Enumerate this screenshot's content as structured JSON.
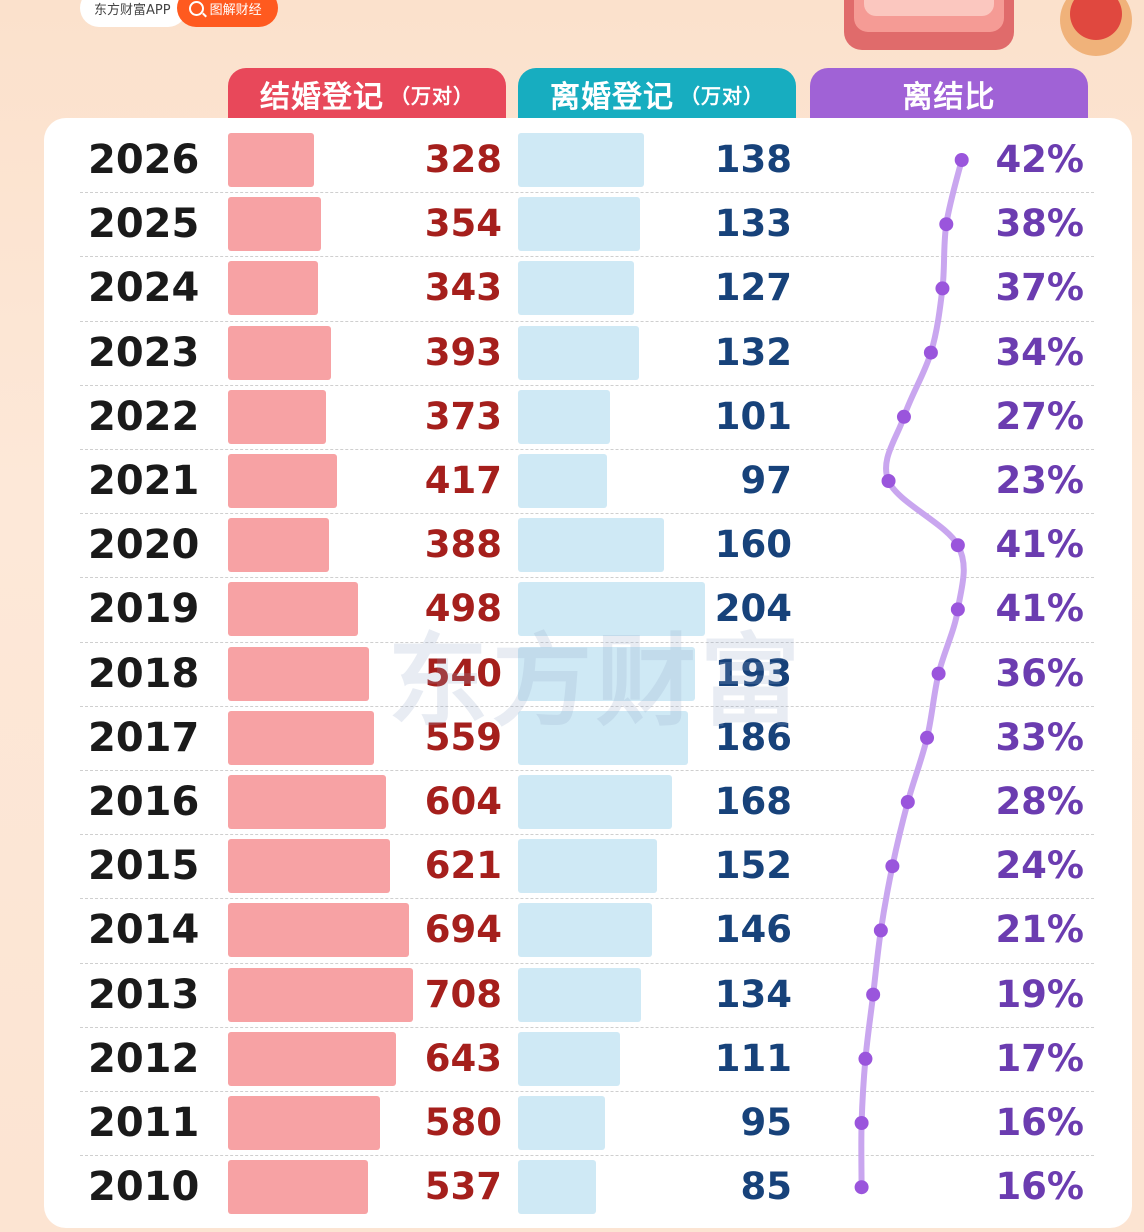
{
  "top_bar": {
    "brand_label": "东方财富APP",
    "search_label": "图解财经",
    "accent_color": "#ff5a1f"
  },
  "watermark": "东方财富",
  "headers": {
    "marriage": {
      "label": "结婚登记",
      "unit": "（万对）",
      "color": "#e8485a"
    },
    "divorce": {
      "label": "离婚登记",
      "unit": "（万对）",
      "color": "#17adc0"
    },
    "ratio": {
      "label": "离结比",
      "color": "#a062d6"
    }
  },
  "chart_data": {
    "type": "table",
    "columns": [
      "结婚登记（万对）",
      "离婚登记（万对）",
      "离结比"
    ],
    "rows": [
      {
        "year": "2026",
        "marriage": "328",
        "divorce": "138",
        "ratio": "42%"
      },
      {
        "year": "2025",
        "marriage": "354",
        "divorce": "133",
        "ratio": "38%"
      },
      {
        "year": "2024",
        "marriage": "343",
        "divorce": "127",
        "ratio": "37%"
      },
      {
        "year": "2023",
        "marriage": "393",
        "divorce": "132",
        "ratio": "34%"
      },
      {
        "year": "2022",
        "marriage": "373",
        "divorce": "101",
        "ratio": "27%"
      },
      {
        "year": "2021",
        "marriage": "417",
        "divorce": "97",
        "ratio": "23%"
      },
      {
        "year": "2020",
        "marriage": "388",
        "divorce": "160",
        "ratio": "41%"
      },
      {
        "year": "2019",
        "marriage": "498",
        "divorce": "204",
        "ratio": "41%"
      },
      {
        "year": "2018",
        "marriage": "540",
        "divorce": "193",
        "ratio": "36%"
      },
      {
        "year": "2017",
        "marriage": "559",
        "divorce": "186",
        "ratio": "33%"
      },
      {
        "year": "2016",
        "marriage": "604",
        "divorce": "168",
        "ratio": "28%"
      },
      {
        "year": "2015",
        "marriage": "621",
        "divorce": "152",
        "ratio": "24%"
      },
      {
        "year": "2014",
        "marriage": "694",
        "divorce": "146",
        "ratio": "21%"
      },
      {
        "year": "2013",
        "marriage": "708",
        "divorce": "134",
        "ratio": "19%"
      },
      {
        "year": "2012",
        "marriage": "643",
        "divorce": "111",
        "ratio": "17%"
      },
      {
        "year": "2011",
        "marriage": "580",
        "divorce": "95",
        "ratio": "16%"
      },
      {
        "year": "2010",
        "marriage": "537",
        "divorce": "85",
        "ratio": "16%"
      }
    ],
    "bar_colors": {
      "marriage": "#f7a2a4",
      "divorce": "#cfe9f5"
    },
    "value_colors": {
      "marriage": "#a51f1c",
      "divorce": "#17427a",
      "ratio": "#6b3cb0"
    },
    "line_color": "#c9a6ef",
    "dot_color": "#9a55dc"
  }
}
